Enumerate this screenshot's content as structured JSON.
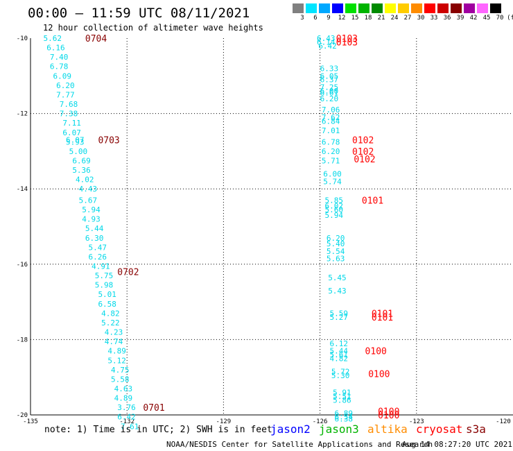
{
  "header": {
    "title": "00:00 – 11:59 UTC 08/11/2021",
    "subtitle": "12 hour collection of altimeter wave heights"
  },
  "legend": {
    "unit": "(ft)",
    "bins": [
      {
        "label": "3",
        "color": "#808080"
      },
      {
        "label": "6",
        "color": "#00e5ff"
      },
      {
        "label": "9",
        "color": "#00a8ff"
      },
      {
        "label": "12",
        "color": "#0000ff"
      },
      {
        "label": "15",
        "color": "#00e000"
      },
      {
        "label": "18",
        "color": "#00b400"
      },
      {
        "label": "21",
        "color": "#008a00"
      },
      {
        "label": "24",
        "color": "#ffff00"
      },
      {
        "label": "27",
        "color": "#ffcc00"
      },
      {
        "label": "30",
        "color": "#ff8c00"
      },
      {
        "label": "33",
        "color": "#ff0000"
      },
      {
        "label": "36",
        "color": "#cc0000"
      },
      {
        "label": "39",
        "color": "#880000"
      },
      {
        "label": "42",
        "color": "#a000a0"
      },
      {
        "label": "45",
        "color": "#ff66ff"
      },
      {
        "label": "70",
        "color": "#000000"
      }
    ]
  },
  "map": {
    "lon_range": [
      -135,
      -120
    ],
    "lat_range": [
      -20,
      -10
    ],
    "lon_ticks": [
      "-135",
      "-132",
      "-129",
      "-126",
      "-123",
      "-120"
    ],
    "lat_ticks": [
      "-10",
      "-12",
      "-14",
      "-16",
      "-18",
      "-20"
    ],
    "height_color": "#00d8e8",
    "tracks": [
      {
        "satellite": "s3a",
        "color": "#880000",
        "times": [
          {
            "label": "0704",
            "lon": -133.3,
            "lat": -10.0
          },
          {
            "label": "0703",
            "lon": -132.9,
            "lat": -12.7
          },
          {
            "label": "0702",
            "lon": -132.3,
            "lat": -16.2
          },
          {
            "label": "0701",
            "lon": -131.5,
            "lat": -19.8
          }
        ],
        "heights": [
          {
            "v": "5.62",
            "lon": -134.6,
            "lat": -10.0
          },
          {
            "v": "6.16",
            "lon": -134.5,
            "lat": -10.25
          },
          {
            "v": "7.40",
            "lon": -134.4,
            "lat": -10.5
          },
          {
            "v": "6.78",
            "lon": -134.4,
            "lat": -10.75
          },
          {
            "v": "6.09",
            "lon": -134.3,
            "lat": -11.0
          },
          {
            "v": "6.20",
            "lon": -134.2,
            "lat": -11.25
          },
          {
            "v": "7.77",
            "lon": -134.2,
            "lat": -11.5
          },
          {
            "v": "7.68",
            "lon": -134.1,
            "lat": -11.75
          },
          {
            "v": "7.38",
            "lon": -134.1,
            "lat": -12.0
          },
          {
            "v": "7.11",
            "lon": -134.0,
            "lat": -12.25
          },
          {
            "v": "6.07",
            "lon": -134.0,
            "lat": -12.5
          },
          {
            "v": "5.93",
            "lon": -133.9,
            "lat": -12.75
          },
          {
            "v": "6.07",
            "lon": -133.9,
            "lat": -12.7
          },
          {
            "v": "5.00",
            "lon": -133.8,
            "lat": -13.0
          },
          {
            "v": "6.69",
            "lon": -133.7,
            "lat": -13.25
          },
          {
            "v": "5.36",
            "lon": -133.7,
            "lat": -13.5
          },
          {
            "v": "4.02",
            "lon": -133.6,
            "lat": -13.75
          },
          {
            "v": "4.43",
            "lon": -133.5,
            "lat": -14.0
          },
          {
            "v": "5.67",
            "lon": -133.5,
            "lat": -14.3
          },
          {
            "v": "5.94",
            "lon": -133.4,
            "lat": -14.55
          },
          {
            "v": "4.93",
            "lon": -133.4,
            "lat": -14.8
          },
          {
            "v": "5.44",
            "lon": -133.3,
            "lat": -15.05
          },
          {
            "v": "6.30",
            "lon": -133.3,
            "lat": -15.3
          },
          {
            "v": "5.47",
            "lon": -133.2,
            "lat": -15.55
          },
          {
            "v": "6.26",
            "lon": -133.2,
            "lat": -15.8
          },
          {
            "v": "4.91",
            "lon": -133.1,
            "lat": -16.05
          },
          {
            "v": "5.75",
            "lon": -133.0,
            "lat": -16.3
          },
          {
            "v": "5.98",
            "lon": -133.0,
            "lat": -16.55
          },
          {
            "v": "5.01",
            "lon": -132.9,
            "lat": -16.8
          },
          {
            "v": "6.58",
            "lon": -132.9,
            "lat": -17.05
          },
          {
            "v": "4.82",
            "lon": -132.8,
            "lat": -17.3
          },
          {
            "v": "5.22",
            "lon": -132.8,
            "lat": -17.55
          },
          {
            "v": "4.23",
            "lon": -132.7,
            "lat": -17.8
          },
          {
            "v": "4.74",
            "lon": -132.7,
            "lat": -18.05
          },
          {
            "v": "4.89",
            "lon": -132.6,
            "lat": -18.3
          },
          {
            "v": "5.12",
            "lon": -132.6,
            "lat": -18.55
          },
          {
            "v": "4.75",
            "lon": -132.5,
            "lat": -18.8
          },
          {
            "v": "5.58",
            "lon": -132.5,
            "lat": -19.05
          },
          {
            "v": "4.63",
            "lon": -132.4,
            "lat": -19.3
          },
          {
            "v": "4.89",
            "lon": -132.4,
            "lat": -19.55
          },
          {
            "v": "3.76",
            "lon": -132.3,
            "lat": -19.8
          },
          {
            "v": "6.42",
            "lon": -132.3,
            "lat": -20.05
          },
          {
            "v": "7.61",
            "lon": -132.2,
            "lat": -20.3
          }
        ]
      },
      {
        "satellite": "cryosat",
        "color": "#ff0000",
        "times": [
          {
            "label": "0103",
            "lon": -125.5,
            "lat": -10.0
          },
          {
            "label": "0103",
            "lon": -125.5,
            "lat": -10.1
          },
          {
            "label": "0102",
            "lon": -125.0,
            "lat": -12.7
          },
          {
            "label": "0102",
            "lon": -125.0,
            "lat": -13.0
          },
          {
            "label": "0102",
            "lon": -124.95,
            "lat": -13.2
          },
          {
            "label": "0101",
            "lon": -124.7,
            "lat": -14.3
          },
          {
            "label": "0101",
            "lon": -124.4,
            "lat": -17.3
          },
          {
            "label": "0101",
            "lon": -124.4,
            "lat": -17.4
          },
          {
            "label": "0100",
            "lon": -124.6,
            "lat": -18.3
          },
          {
            "label": "0100",
            "lon": -124.5,
            "lat": -18.9
          },
          {
            "label": "0100",
            "lon": -124.2,
            "lat": -19.9
          },
          {
            "label": "0100",
            "lon": -124.2,
            "lat": -20.0
          }
        ],
        "heights": [
          {
            "v": "6.43",
            "lon": -126.1,
            "lat": -10.0
          },
          {
            "v": "6.14",
            "lon": -126.1,
            "lat": -10.1
          },
          {
            "v": "6.42",
            "lon": -126.05,
            "lat": -10.2
          },
          {
            "v": "6.33",
            "lon": -126.0,
            "lat": -10.8
          },
          {
            "v": "6.05",
            "lon": -126.0,
            "lat": -11.0
          },
          {
            "v": "6.37",
            "lon": -126.0,
            "lat": -11.1
          },
          {
            "v": "7.25",
            "lon": -126.0,
            "lat": -11.3
          },
          {
            "v": "6.00",
            "lon": -126.0,
            "lat": -11.4
          },
          {
            "v": "6.61",
            "lon": -126.0,
            "lat": -11.45
          },
          {
            "v": "6.20",
            "lon": -126.0,
            "lat": -11.6
          },
          {
            "v": "7.06",
            "lon": -125.95,
            "lat": -11.9
          },
          {
            "v": "7.62",
            "lon": -125.95,
            "lat": -12.1
          },
          {
            "v": "6.84",
            "lon": -125.95,
            "lat": -12.2
          },
          {
            "v": "7.01",
            "lon": -125.95,
            "lat": -12.45
          },
          {
            "v": "6.78",
            "lon": -125.95,
            "lat": -12.75
          },
          {
            "v": "6.20",
            "lon": -125.95,
            "lat": -13.0
          },
          {
            "v": "5.71",
            "lon": -125.95,
            "lat": -13.25
          },
          {
            "v": "6.00",
            "lon": -125.9,
            "lat": -13.6
          },
          {
            "v": "5.74",
            "lon": -125.9,
            "lat": -13.8
          },
          {
            "v": "5.85",
            "lon": -125.85,
            "lat": -14.3
          },
          {
            "v": "6.02",
            "lon": -125.85,
            "lat": -14.45
          },
          {
            "v": "5.60",
            "lon": -125.85,
            "lat": -14.55
          },
          {
            "v": "5.94",
            "lon": -125.85,
            "lat": -14.7
          },
          {
            "v": "6.20",
            "lon": -125.8,
            "lat": -15.3
          },
          {
            "v": "5.40",
            "lon": -125.8,
            "lat": -15.45
          },
          {
            "v": "5.54",
            "lon": -125.8,
            "lat": -15.65
          },
          {
            "v": "5.63",
            "lon": -125.8,
            "lat": -15.85
          },
          {
            "v": "5.45",
            "lon": -125.75,
            "lat": -16.35
          },
          {
            "v": "5.43",
            "lon": -125.75,
            "lat": -16.7
          },
          {
            "v": "5.59",
            "lon": -125.7,
            "lat": -17.3
          },
          {
            "v": "5.27",
            "lon": -125.7,
            "lat": -17.4
          },
          {
            "v": "6.12",
            "lon": -125.7,
            "lat": -18.1
          },
          {
            "v": "5.44",
            "lon": -125.7,
            "lat": -18.3
          },
          {
            "v": "5.61",
            "lon": -125.7,
            "lat": -18.4
          },
          {
            "v": "4.82",
            "lon": -125.7,
            "lat": -18.5
          },
          {
            "v": "5.72",
            "lon": -125.65,
            "lat": -18.85
          },
          {
            "v": "5.30",
            "lon": -125.65,
            "lat": -18.95
          },
          {
            "v": "5.91",
            "lon": -125.6,
            "lat": -19.4
          },
          {
            "v": "5.51",
            "lon": -125.6,
            "lat": -19.5
          },
          {
            "v": "5.86",
            "lon": -125.6,
            "lat": -19.6
          },
          {
            "v": "6.89",
            "lon": -125.55,
            "lat": -19.95
          },
          {
            "v": "6.54",
            "lon": -125.55,
            "lat": -20.05
          },
          {
            "v": "6.38",
            "lon": -125.55,
            "lat": -20.1
          }
        ]
      }
    ]
  },
  "footer": {
    "note": "note: 1) Time is in UTC; 2) SWH is in feet",
    "satellites": [
      {
        "name": "jason2",
        "color": "#0000ff"
      },
      {
        "name": "jason3",
        "color": "#00b400"
      },
      {
        "name": "altika",
        "color": "#ff8c00"
      },
      {
        "name": "cryosat",
        "color": "#ff0000"
      },
      {
        "name": "s3a",
        "color": "#880000"
      }
    ],
    "credit": "NOAA/NESDIS Center for Satellite Applications and Research",
    "timestamp": "Aug 14 08:27:20 UTC 2021"
  }
}
